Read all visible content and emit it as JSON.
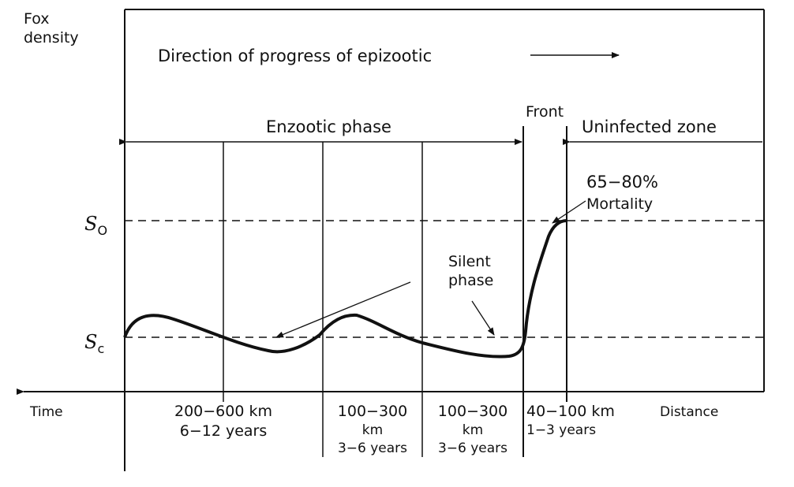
{
  "y_axis_label": [
    "Fox",
    "density"
  ],
  "direction_text": "Direction of progress of epizootic",
  "phases": {
    "enzootic": "Enzootic phase",
    "front": "Front",
    "uninfected": "Uninfected zone"
  },
  "levels": {
    "s0": {
      "main": "S",
      "sub": "O"
    },
    "sc": {
      "main": "S",
      "sub": "c"
    }
  },
  "annotations": {
    "mortality_pct": "65−80%",
    "mortality_word": "Mortality",
    "silent": [
      "Silent",
      "phase"
    ]
  },
  "axis_labels": {
    "time": "Time",
    "distance": "Distance"
  },
  "segments": {
    "seg1": [
      "200−600 km",
      "6−12  years"
    ],
    "seg2": [
      "100−300",
      "km",
      "3−6 years"
    ],
    "seg3": [
      "100−300",
      "km",
      "3−6 years"
    ],
    "seg4": [
      "40−100 km",
      "1−3  years"
    ]
  }
}
